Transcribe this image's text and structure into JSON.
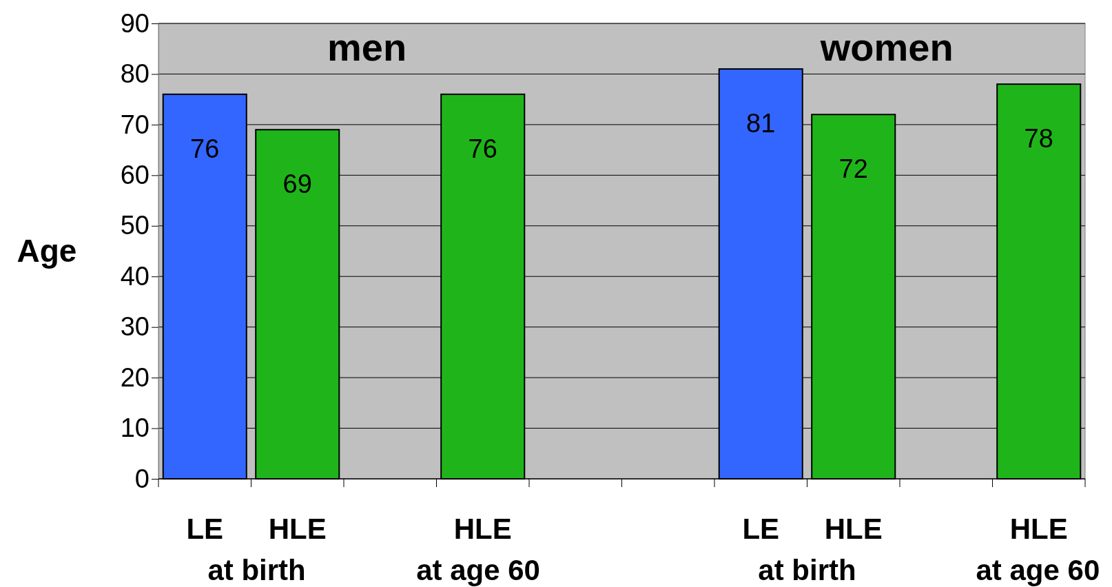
{
  "chart_data": {
    "type": "bar",
    "ylabel": "Age",
    "categories": [
      "LE",
      "HLE",
      null,
      "HLE",
      null,
      null,
      "LE",
      "HLE",
      null,
      "HLE"
    ],
    "values": [
      76,
      69,
      null,
      76,
      null,
      null,
      81,
      72,
      null,
      78
    ],
    "colors": [
      "#3366ff",
      "#1fb51a",
      null,
      "#1fb51a",
      null,
      null,
      "#3366ff",
      "#1fb51a",
      null,
      "#1fb51a"
    ],
    "ylim": [
      0,
      90
    ],
    "yticks": [
      0,
      10,
      20,
      30,
      40,
      50,
      60,
      70,
      80,
      90
    ],
    "grid": "y",
    "data_labels": true,
    "annotations": [
      "men",
      "women",
      "at birth",
      "at birth",
      "at age 60",
      "at age 60"
    ]
  }
}
